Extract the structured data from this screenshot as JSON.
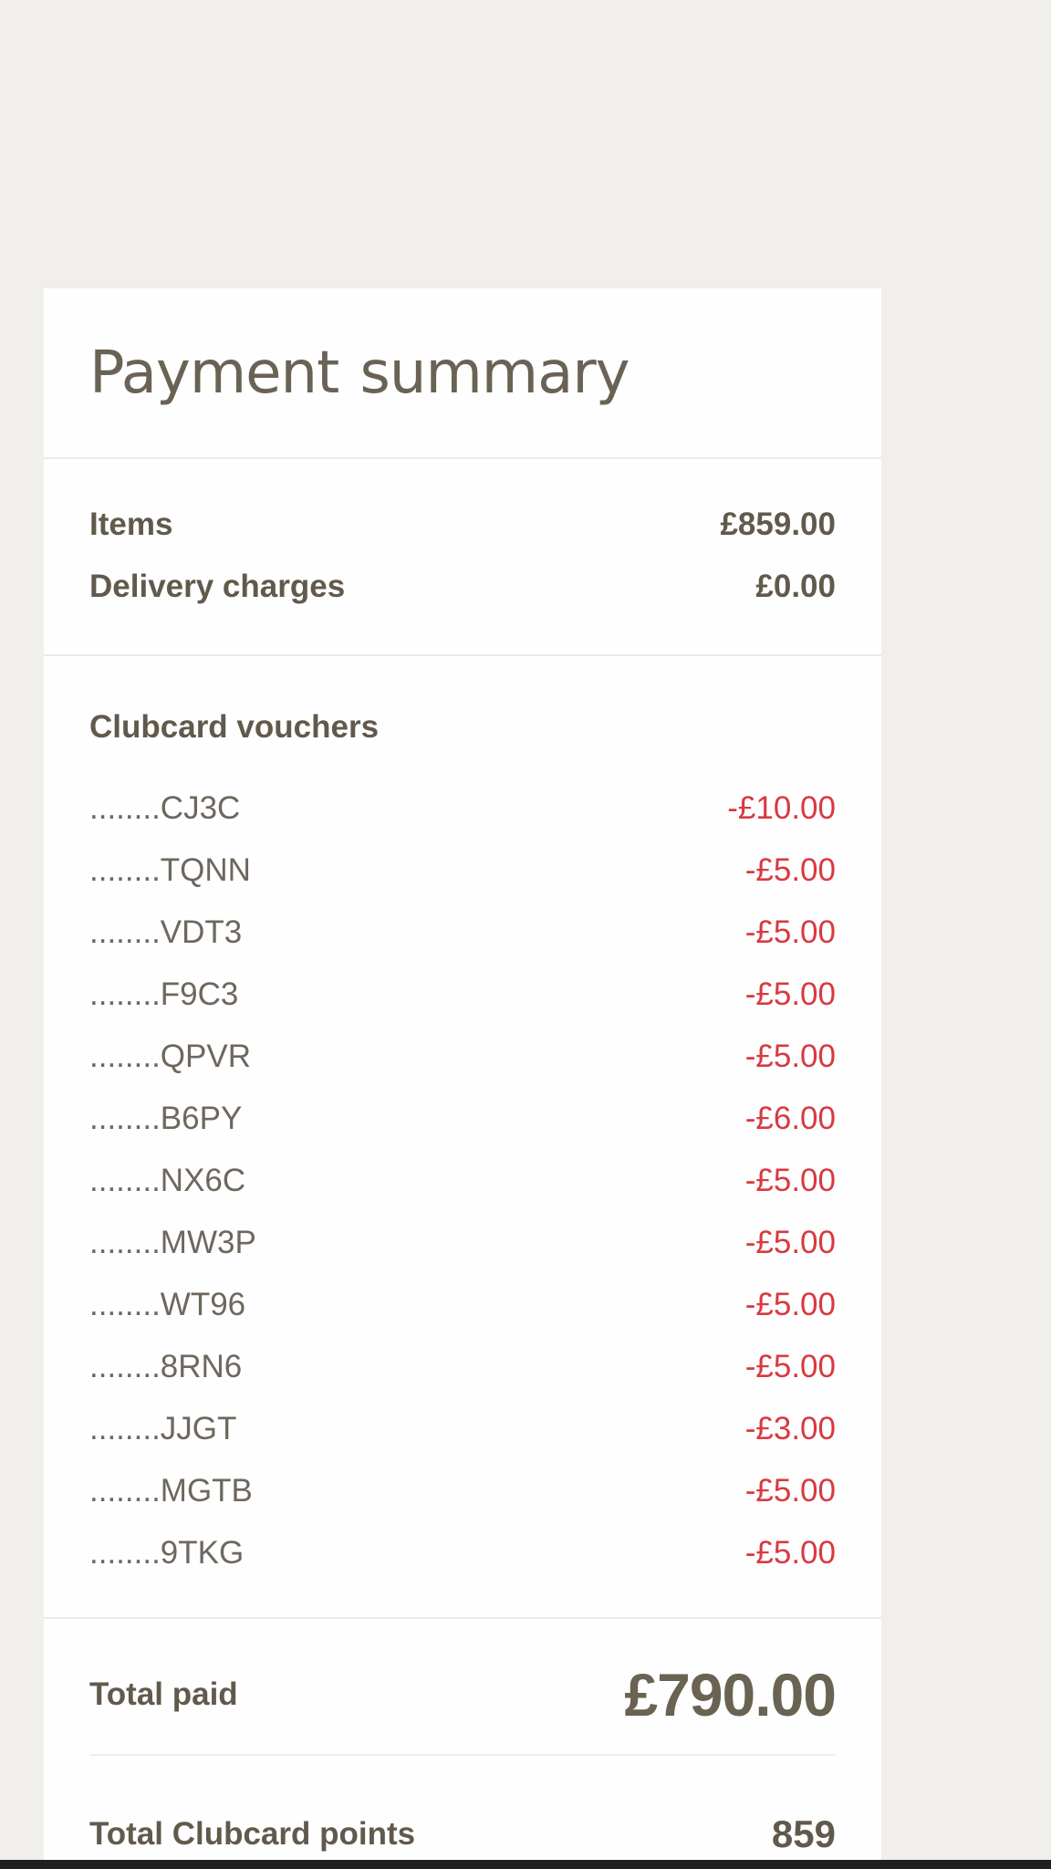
{
  "page": {
    "background_color": "#f1efeb",
    "card_color": "#fefefe",
    "brand_text_color": "#615a4c",
    "negative_amount_color": "#d93940"
  },
  "card": {
    "title": "Payment summary",
    "charges": [
      {
        "label": "Items",
        "value": "£859.00"
      },
      {
        "label": "Delivery charges",
        "value": "£0.00"
      }
    ],
    "vouchers": {
      "heading": "Clubcard vouchers",
      "items": [
        {
          "code": "........CJ3C",
          "value": "-£10.00"
        },
        {
          "code": "........TQNN",
          "value": "-£5.00"
        },
        {
          "code": "........VDT3",
          "value": "-£5.00"
        },
        {
          "code": "........F9C3",
          "value": "-£5.00"
        },
        {
          "code": "........QPVR",
          "value": "-£5.00"
        },
        {
          "code": "........B6PY",
          "value": "-£6.00"
        },
        {
          "code": "........NX6C",
          "value": "-£5.00"
        },
        {
          "code": "........MW3P",
          "value": "-£5.00"
        },
        {
          "code": "........WT96",
          "value": "-£5.00"
        },
        {
          "code": "........8RN6",
          "value": "-£5.00"
        },
        {
          "code": "........JJGT",
          "value": "-£3.00"
        },
        {
          "code": "........MGTB",
          "value": "-£5.00"
        },
        {
          "code": "........9TKG",
          "value": "-£5.00"
        }
      ]
    },
    "total_paid": {
      "label": "Total paid",
      "value": "£790.00"
    },
    "clubcard_points": {
      "label": "Total Clubcard points",
      "value": "859"
    }
  }
}
